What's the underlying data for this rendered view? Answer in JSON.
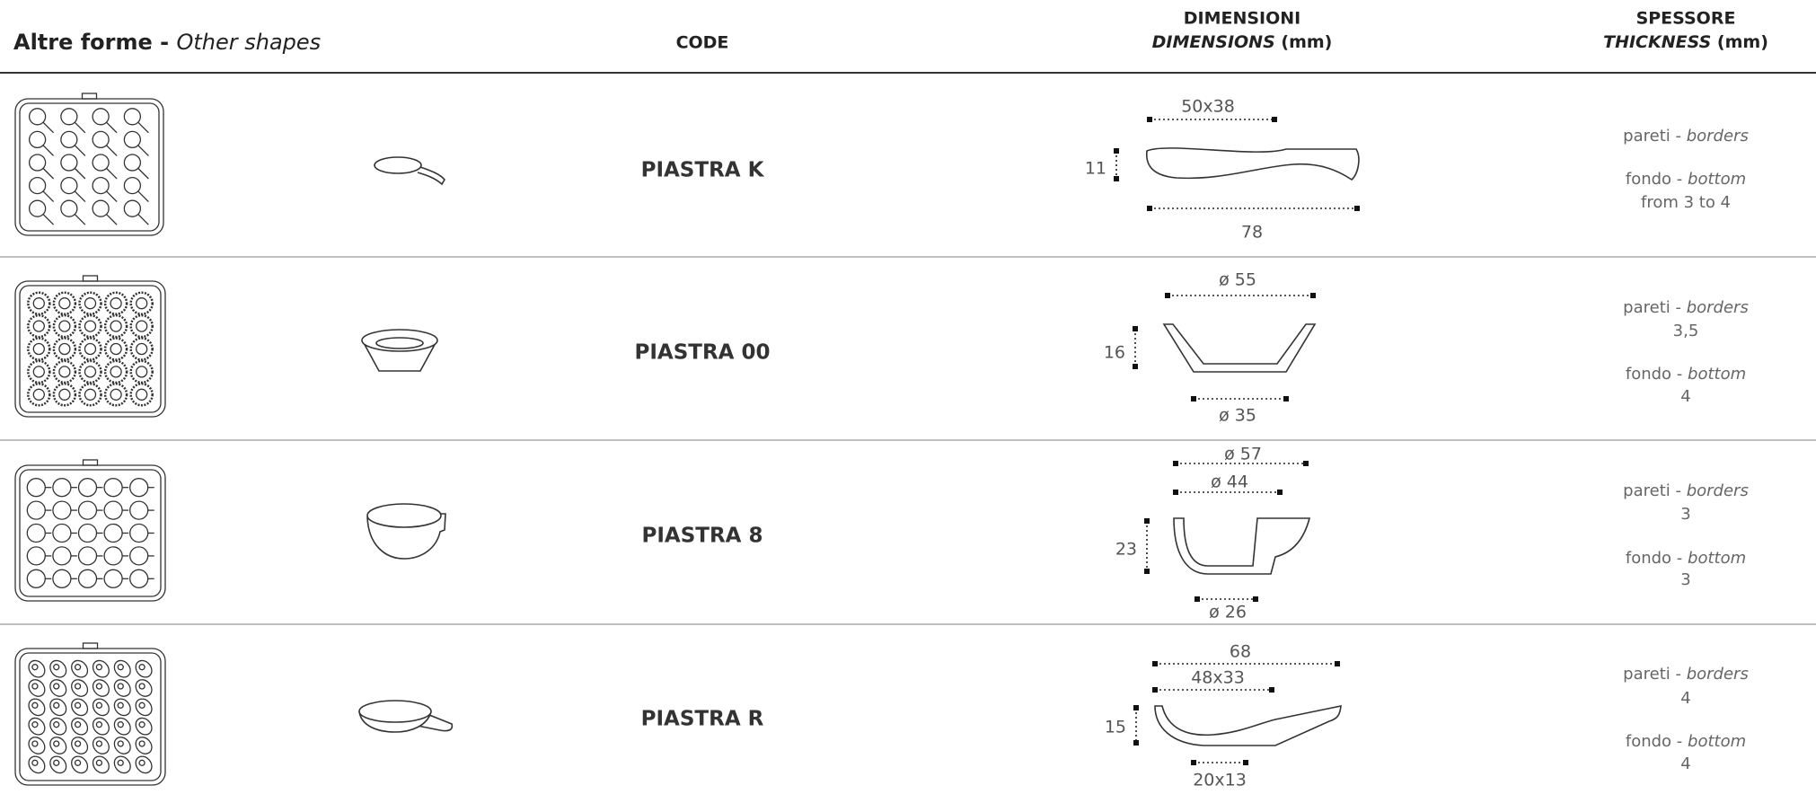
{
  "header": {
    "title_it": "Altre forme - ",
    "title_en": "Other shapes",
    "code": "CODE",
    "dim_it": "DIMENSIONI",
    "dim_en": "DIMENSIONS",
    "dim_unit": " (mm)",
    "thk_it": "SPESSORE",
    "thk_en": "THICKNESS",
    "thk_unit": " (mm)"
  },
  "rows": [
    {
      "code": "PIASTRA K",
      "dims": {
        "top": "50x38",
        "height": "11",
        "bottom": "78"
      },
      "borders_label": "pareti - ",
      "borders_en": "borders",
      "bottom_label": "fondo - ",
      "bottom_en": "bottom",
      "bottom_value": "from 3 to 4"
    },
    {
      "code": "PIASTRA 00",
      "dims": {
        "top": "ø 55",
        "height": "16",
        "bottom": "ø 35"
      },
      "borders_label": "pareti - ",
      "borders_en": "borders",
      "borders_value": "3,5",
      "bottom_label": "fondo - ",
      "bottom_en": "bottom",
      "bottom_value": "4"
    },
    {
      "code": "PIASTRA 8",
      "dims": {
        "top": "ø 57",
        "top2": "ø 44",
        "height": "23",
        "bottom": "ø 26"
      },
      "borders_label": "pareti - ",
      "borders_en": "borders",
      "borders_value": "3",
      "bottom_label": "fondo - ",
      "bottom_en": "bottom",
      "bottom_value": "3"
    },
    {
      "code": "PIASTRA R",
      "dims": {
        "top": "68",
        "top2": "48x33",
        "height": "15",
        "bottom": "20x13"
      },
      "borders_label": "pareti - ",
      "borders_en": "borders",
      "borders_value": "4",
      "bottom_label": "fondo - ",
      "bottom_en": "bottom",
      "bottom_value": "4"
    }
  ]
}
